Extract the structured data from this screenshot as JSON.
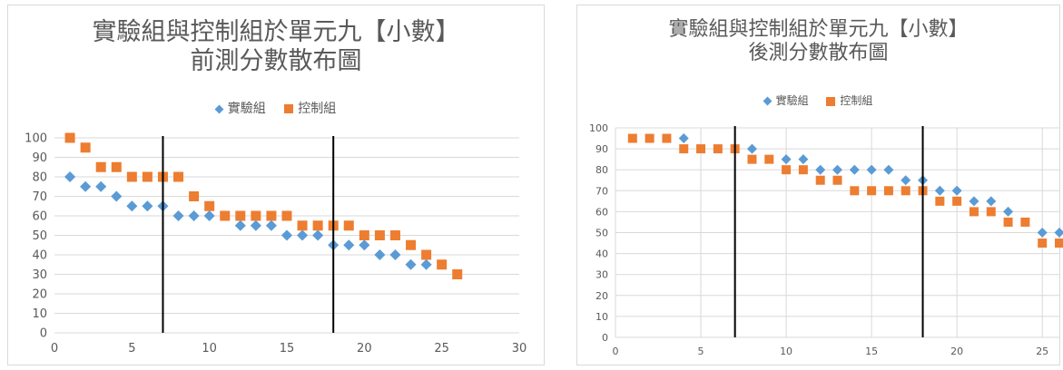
{
  "colors": {
    "experimental": "#5b9bd5",
    "control": "#ed7d31",
    "grid": "#d9d9d9",
    "marker_line": "#000000"
  },
  "chart_data": [
    {
      "type": "scatter",
      "title_line1": "實驗組與控制組於單元九【小數】",
      "title_line2": "前測分數散布圖",
      "xlim": [
        0,
        30
      ],
      "ylim": [
        0,
        100
      ],
      "xticks": [
        0,
        5,
        10,
        15,
        20,
        25,
        30
      ],
      "yticks": [
        0,
        10,
        20,
        30,
        40,
        50,
        60,
        70,
        80,
        90,
        100
      ],
      "grid": "horizontal",
      "legend_position": "top",
      "vertical_lines_x": [
        7,
        18
      ],
      "series": [
        {
          "name": "實驗組",
          "marker": "diamond",
          "x": [
            1,
            2,
            3,
            4,
            5,
            6,
            7,
            8,
            9,
            10,
            12,
            13,
            14,
            15,
            16,
            17,
            18,
            19,
            20,
            21,
            22,
            23,
            24
          ],
          "y": [
            80,
            75,
            75,
            70,
            65,
            65,
            65,
            60,
            60,
            60,
            55,
            55,
            55,
            50,
            50,
            50,
            45,
            45,
            45,
            40,
            40,
            35,
            35
          ]
        },
        {
          "name": "控制組",
          "marker": "square",
          "x": [
            1,
            2,
            3,
            4,
            5,
            6,
            7,
            8,
            9,
            10,
            11,
            12,
            13,
            14,
            15,
            16,
            17,
            18,
            19,
            20,
            21,
            22,
            23,
            24,
            25,
            26
          ],
          "y": [
            100,
            95,
            85,
            85,
            80,
            80,
            80,
            80,
            70,
            65,
            60,
            60,
            60,
            60,
            60,
            55,
            55,
            55,
            55,
            50,
            50,
            50,
            45,
            40,
            35,
            30
          ]
        }
      ]
    },
    {
      "type": "scatter",
      "title_line1": "實驗組與控制組於單元九【小數】",
      "title_line2": "後測分數散布圖",
      "xlim": [
        0,
        26
      ],
      "ylim": [
        0,
        100
      ],
      "xticks": [
        0,
        5,
        10,
        15,
        20,
        25
      ],
      "yticks": [
        0,
        10,
        20,
        30,
        40,
        50,
        60,
        70,
        80,
        90,
        100
      ],
      "grid": "both",
      "legend_position": "top",
      "vertical_lines_x": [
        7,
        18
      ],
      "series": [
        {
          "name": "實驗組",
          "marker": "diamond",
          "x": [
            4,
            8,
            10,
            11,
            12,
            13,
            14,
            15,
            16,
            17,
            18,
            19,
            20,
            21,
            22,
            23,
            25,
            26
          ],
          "y": [
            95,
            90,
            85,
            85,
            80,
            80,
            80,
            80,
            80,
            75,
            75,
            70,
            70,
            65,
            65,
            60,
            50,
            50
          ]
        },
        {
          "name": "控制組",
          "marker": "square",
          "x": [
            1,
            2,
            3,
            4,
            5,
            6,
            7,
            8,
            9,
            10,
            11,
            12,
            13,
            14,
            15,
            16,
            17,
            18,
            19,
            20,
            21,
            22,
            23,
            24,
            25,
            26
          ],
          "y": [
            95,
            95,
            95,
            90,
            90,
            90,
            90,
            85,
            85,
            80,
            80,
            75,
            75,
            70,
            70,
            70,
            70,
            70,
            65,
            65,
            60,
            60,
            55,
            55,
            45,
            45
          ]
        }
      ]
    }
  ]
}
